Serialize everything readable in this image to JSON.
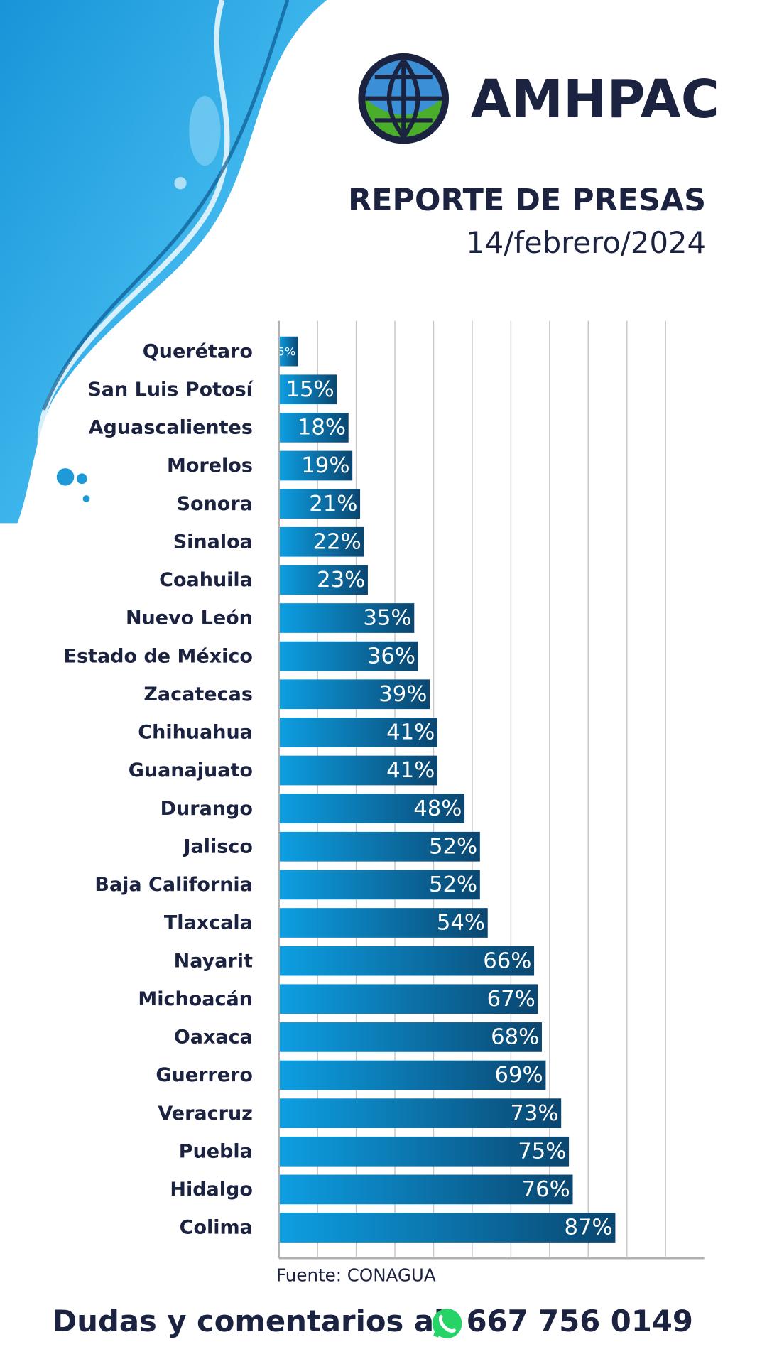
{
  "header": {
    "brand": "AMHPAC",
    "title": "REPORTE DE PRESAS",
    "date": "14/febrero/2024"
  },
  "chart_data": {
    "type": "bar",
    "orientation": "horizontal",
    "categories": [
      "Querétaro",
      "San Luis Potosí",
      "Aguascalientes",
      "Morelos",
      "Sonora",
      "Sinaloa",
      "Coahuila",
      "Nuevo León",
      "Estado de México",
      "Zacatecas",
      "Chihuahua",
      "Guanajuato",
      "Durango",
      "Jalisco",
      "Baja California",
      "Tlaxcala",
      "Nayarit",
      "Michoacán",
      "Oaxaca",
      "Guerrero",
      "Veracruz",
      "Puebla",
      "Hidalgo",
      "Colima"
    ],
    "values": [
      5,
      15,
      18,
      19,
      21,
      22,
      23,
      35,
      36,
      39,
      41,
      41,
      48,
      52,
      52,
      54,
      66,
      67,
      68,
      69,
      73,
      75,
      76,
      87
    ],
    "value_labels": [
      "5%",
      "15%",
      "18%",
      "19%",
      "21%",
      "22%",
      "23%",
      "35%",
      "36%",
      "39%",
      "41%",
      "41%",
      "48%",
      "52%",
      "52%",
      "54%",
      "66%",
      "67%",
      "68%",
      "69%",
      "73%",
      "75%",
      "76%",
      "87%"
    ],
    "color": "#0d9fe3",
    "xlim": [
      0,
      110
    ],
    "xticks": [
      0,
      10,
      20,
      30,
      40,
      50,
      60,
      70,
      80,
      90,
      100
    ],
    "grid": true,
    "source": "Fuente: CONAGUA"
  },
  "footer": {
    "text": "Dudas y comentarios al",
    "phone": "667 756 0149"
  }
}
